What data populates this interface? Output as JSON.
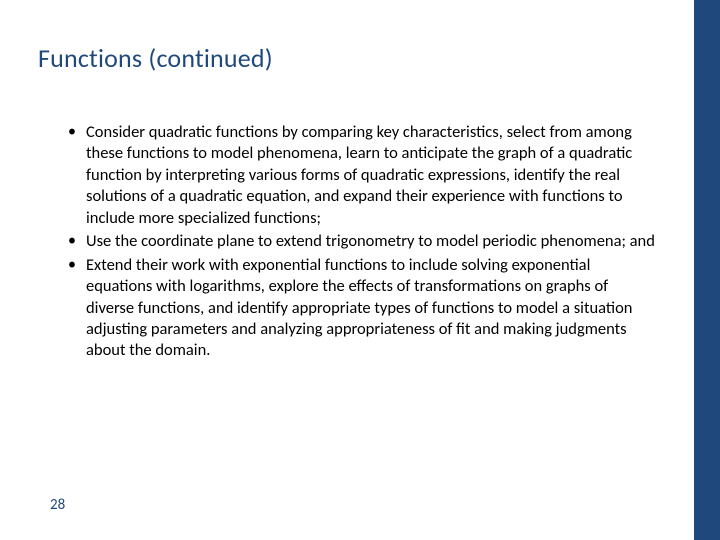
{
  "slide": {
    "title": "Functions (continued)",
    "bullets": [
      "Consider quadratic functions by comparing key characteristics, select from among these functions to model phenomena, learn to anticipate the graph of a quadratic function by interpreting various forms of quadratic expressions, identify the real solutions of a quadratic equation, and expand their experience with functions to include more specialized functions;",
      "Use the coordinate plane to extend trigonometry to model periodic phenomena; and",
      "Extend their work with exponential functions to include solving exponential equations with logarithms, explore the effects of transformations on graphs of diverse functions, and identify appropriate types of functions to model a situation adjusting parameters and analyzing appropriateness of fit and making judgments about the domain."
    ],
    "page_number": "28"
  },
  "colors": {
    "accent": "#1f497d",
    "text": "#000000",
    "background": "#ffffff"
  }
}
